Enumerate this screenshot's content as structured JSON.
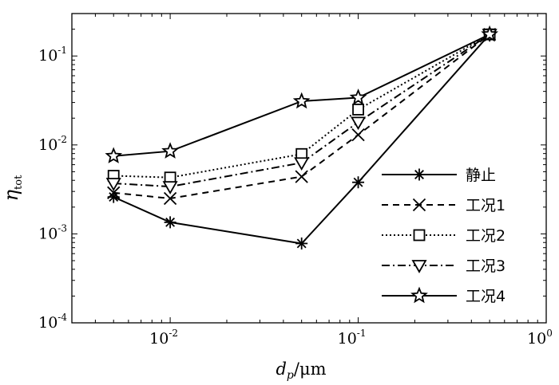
{
  "chart_data": {
    "type": "line",
    "xscale": "log",
    "yscale": "log",
    "xlim": [
      0.003,
      1
    ],
    "ylim": [
      0.0001,
      0.3
    ],
    "x": [
      0.005,
      0.01,
      0.05,
      0.1,
      0.5
    ],
    "xlabel_main": "d",
    "xlabel_sub": "p",
    "xlabel_unit": "/μm",
    "ylabel_main": "η",
    "ylabel_sub": "tot",
    "x_ticks": [
      {
        "value": 0.01,
        "base": "10",
        "exp": "-2"
      },
      {
        "value": 0.1,
        "base": "10",
        "exp": "-1"
      },
      {
        "value": 1,
        "base": "10",
        "exp": "0"
      }
    ],
    "y_ticks": [
      {
        "value": 0.0001,
        "base": "10",
        "exp": "-4"
      },
      {
        "value": 0.001,
        "base": "10",
        "exp": "-3"
      },
      {
        "value": 0.01,
        "base": "10",
        "exp": "-2"
      },
      {
        "value": 0.1,
        "base": "10",
        "exp": "-1"
      }
    ],
    "series": [
      {
        "name": "静止",
        "marker": "asterisk",
        "dash": "none",
        "values": [
          0.0026,
          0.00135,
          0.00078,
          0.0038,
          0.175
        ]
      },
      {
        "name": "工况1",
        "marker": "x",
        "dash": "8,6",
        "values": [
          0.0029,
          0.0025,
          0.0044,
          0.013,
          0.175
        ]
      },
      {
        "name": "工况2",
        "marker": "square",
        "dash": "2,3",
        "values": [
          0.0045,
          0.0043,
          0.0079,
          0.025,
          0.175
        ]
      },
      {
        "name": "工况3",
        "marker": "triangle-down",
        "dash": "10,4,2,4",
        "values": [
          0.0037,
          0.0034,
          0.0063,
          0.018,
          0.175
        ]
      },
      {
        "name": "工况4",
        "marker": "star",
        "dash": "none",
        "values": [
          0.0075,
          0.0085,
          0.031,
          0.034,
          0.175
        ]
      }
    ],
    "legend_position": "lower-right",
    "grid": false
  }
}
